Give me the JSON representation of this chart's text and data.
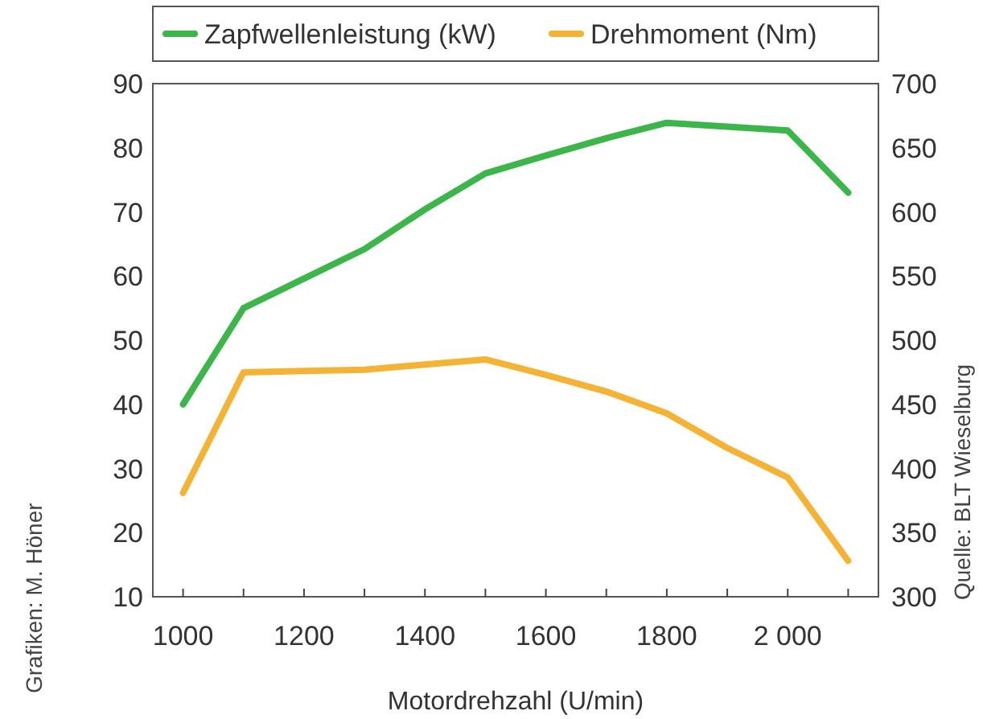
{
  "chart_data": {
    "type": "line",
    "xlabel": "Motordrehzahl (U/min)",
    "x": [
      1000,
      1100,
      1200,
      1300,
      1400,
      1500,
      1600,
      1700,
      1800,
      1900,
      2000,
      2100
    ],
    "series": [
      {
        "name": "Zapfwellenleistung (kW)",
        "color": "#3cb64a",
        "values": [
          40,
          55,
          59.6,
          64.2,
          70.4,
          76,
          78.8,
          81.5,
          83.9,
          83.3,
          82.7,
          73
        ]
      },
      {
        "name": "Drehmoment (Nm)",
        "color": "#f5b335",
        "axis": "y2",
        "values": [
          381,
          475,
          476,
          477,
          481,
          485,
          473,
          460,
          443,
          416,
          393,
          328
        ]
      }
    ],
    "xlim": [
      950,
      2150
    ],
    "xticks": [
      1000,
      {
        "value": 1100,
        "label": null
      },
      1200,
      {
        "value": 1300,
        "label": null
      },
      1400,
      {
        "value": 1500,
        "label": null
      },
      1600,
      {
        "value": 1700,
        "label": null
      },
      1800,
      {
        "value": 1900,
        "label": null
      },
      {
        "value": 2000,
        "label": "2 000"
      },
      {
        "value": 2100,
        "label": null
      }
    ],
    "ylim": [
      10,
      90
    ],
    "yticks": [
      10,
      20,
      30,
      40,
      50,
      60,
      70,
      80,
      90
    ],
    "y2lim": [
      300,
      700
    ],
    "y2ticks": [
      300,
      350,
      400,
      450,
      500,
      550,
      600,
      650,
      700
    ],
    "legend": "top",
    "grid": false,
    "marker": "none",
    "line_style": "solid",
    "annotations": [
      "Grafiken: M. Höner",
      "Quelle: BLT Wieselburg"
    ]
  }
}
